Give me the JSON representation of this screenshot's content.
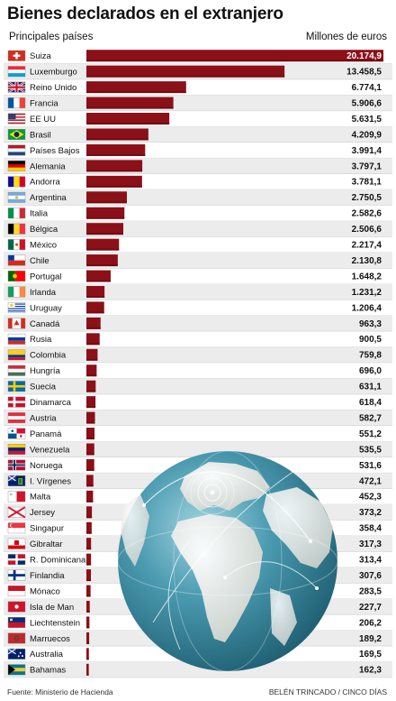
{
  "header": {
    "title": "Bienes declarados en el extranjero",
    "left_label": "Principales países",
    "right_label": "Millones de euros"
  },
  "footer": {
    "source": "Fuente: Ministerio de Hacienda",
    "credit": "BELÉN TRINCADO / CINCO DÍAS"
  },
  "colors": {
    "bar": "#8c1018",
    "bar_edge": "#5a0a10",
    "row_alt": "#ececec",
    "globe_ocean": "#3f8fa5",
    "globe_land": "#e6e6df"
  },
  "chart_data": {
    "type": "bar",
    "orientation": "horizontal",
    "title": "Bienes declarados en el extranjero",
    "unit": "Millones de euros",
    "categories": [
      "Suiza",
      "Luxemburgo",
      "Reino Unido",
      "Francia",
      "EE UU",
      "Brasil",
      "Países Bajos",
      "Alemania",
      "Andorra",
      "Argentina",
      "Italia",
      "Bélgica",
      "México",
      "Chile",
      "Portugal",
      "Irlanda",
      "Uruguay",
      "Canadá",
      "Rusia",
      "Colombia",
      "Hungría",
      "Suecia",
      "Dinamarca",
      "Austria",
      "Panamá",
      "Venezuela",
      "Noruega",
      "I. Vírgenes",
      "Malta",
      "Jersey",
      "Singapur",
      "Gibraltar",
      "R. Dominicana",
      "Finlandia",
      "Mónaco",
      "Isla de Man",
      "Liechtenstein",
      "Marruecos",
      "Australia",
      "Bahamas"
    ],
    "values": [
      20174.9,
      13458.5,
      6774.1,
      5906.6,
      5631.5,
      4209.9,
      3991.4,
      3797.1,
      3781.1,
      2750.5,
      2582.6,
      2506.6,
      2217.4,
      2130.8,
      1648.2,
      1231.2,
      1206.4,
      963.3,
      900.5,
      759.8,
      696.0,
      631.1,
      618.4,
      582.7,
      551.2,
      535.5,
      531.6,
      472.1,
      452.3,
      373.2,
      358.4,
      317.3,
      313.4,
      307.6,
      283.5,
      227.7,
      206.2,
      189.2,
      169.5,
      162.3
    ],
    "value_labels": [
      "20.174,9",
      "13.458,5",
      "6.774,1",
      "5.906,6",
      "5.631,5",
      "4.209,9",
      "3.991,4",
      "3.797,1",
      "3.781,1",
      "2.750,5",
      "2.582,6",
      "2.506,6",
      "2.217,4",
      "2.130,8",
      "1.648,2",
      "1.231,2",
      "1.206,4",
      "963,3",
      "900,5",
      "759,8",
      "696,0",
      "631,1",
      "618,4",
      "582,7",
      "551,2",
      "535,5",
      "531,6",
      "472,1",
      "452,3",
      "373,2",
      "358,4",
      "317,3",
      "313,4",
      "307,6",
      "283,5",
      "227,7",
      "206,2",
      "189,2",
      "169,5",
      "162,3"
    ],
    "flag_icons": [
      "switzerland-flag-icon",
      "luxembourg-flag-icon",
      "uk-flag-icon",
      "france-flag-icon",
      "usa-flag-icon",
      "brazil-flag-icon",
      "netherlands-flag-icon",
      "germany-flag-icon",
      "andorra-flag-icon",
      "argentina-flag-icon",
      "italy-flag-icon",
      "belgium-flag-icon",
      "mexico-flag-icon",
      "chile-flag-icon",
      "portugal-flag-icon",
      "ireland-flag-icon",
      "uruguay-flag-icon",
      "canada-flag-icon",
      "russia-flag-icon",
      "colombia-flag-icon",
      "hungary-flag-icon",
      "sweden-flag-icon",
      "denmark-flag-icon",
      "austria-flag-icon",
      "panama-flag-icon",
      "venezuela-flag-icon",
      "norway-flag-icon",
      "virgin-islands-flag-icon",
      "malta-flag-icon",
      "jersey-flag-icon",
      "singapore-flag-icon",
      "gibraltar-flag-icon",
      "dominican-republic-flag-icon",
      "finland-flag-icon",
      "monaco-flag-icon",
      "isle-of-man-flag-icon",
      "liechtenstein-flag-icon",
      "morocco-flag-icon",
      "australia-flag-icon",
      "bahamas-flag-icon"
    ],
    "xlim": [
      0,
      20174.9
    ],
    "grid": false,
    "legend": "none"
  }
}
